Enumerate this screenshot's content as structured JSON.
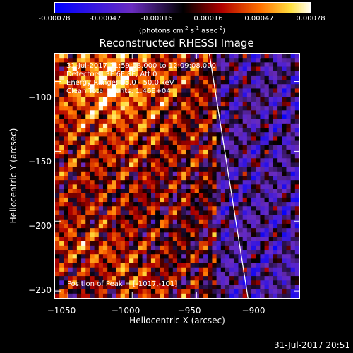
{
  "colorbar": {
    "ticks": [
      "-0.00078",
      "-0.00047",
      "-0.00016",
      "0.00016",
      "0.00047",
      "0.00078"
    ],
    "units_main": "(photons cm",
    "units_exp1": "-2",
    "units_mid": " s",
    "units_exp2": "-1",
    "units_mid2": " asec",
    "units_exp3": "-2",
    "units_end": ")"
  },
  "chart_data": {
    "type": "heatmap",
    "title": "Reconstructed RHESSI Image",
    "xlabel": "Heliocentric X (arcsec)",
    "ylabel": "Heliocentric Y (arcsec)",
    "xlim": [
      -1060,
      -870
    ],
    "ylim": [
      -255,
      -80
    ],
    "x_ticks": [
      -1050,
      -1000,
      -950,
      -900
    ],
    "x_tick_labels": [
      "−1050",
      "−1000",
      "−950",
      "−900"
    ],
    "y_ticks": [
      -100,
      -150,
      -200,
      -250
    ],
    "y_tick_labels": [
      "−100",
      "−150",
      "−200",
      "−250"
    ],
    "value_range": [
      -0.00078,
      0.00078
    ],
    "peak": [
      -1017,
      -101
    ],
    "limb_line": [
      [
        -940,
        -80
      ],
      [
        -910,
        -255
      ]
    ],
    "info_lines": [
      "31-Jul-2017 11:59:08.000 to 12:09:08.000",
      "Detectors: 3F 6F 8F, Att 0",
      "Energy Range: 25.0 - 50.0 keV",
      "Clean      Total counts: 1.46E+04"
    ],
    "peak_label": "Position of Peak = [-1017,-101]"
  },
  "footer": "31-Jul-2017 20:51"
}
